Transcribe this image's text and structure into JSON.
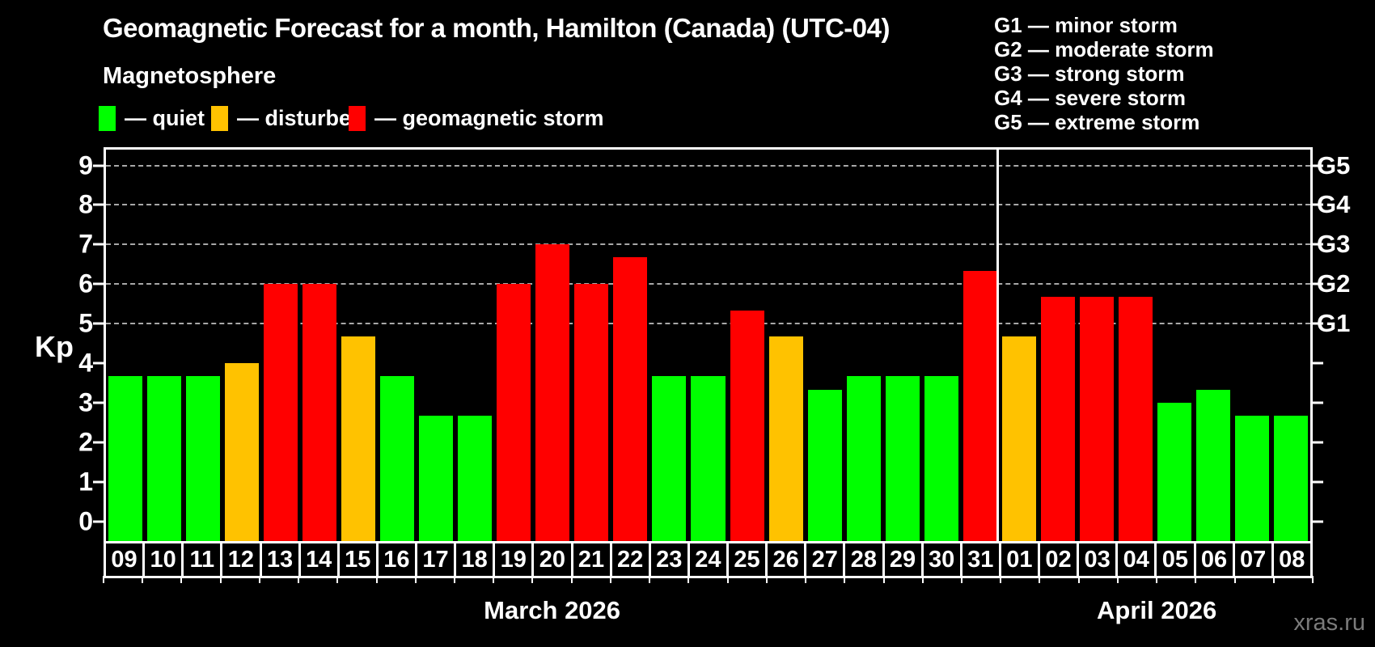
{
  "watermark": "xras.ru",
  "legend": {
    "items": [
      {
        "key": "quiet",
        "label": "— quiet",
        "color": "#00ff00"
      },
      {
        "key": "disturbed",
        "label": "— disturbed",
        "color": "#ffc200"
      },
      {
        "key": "storm",
        "label": "— geomagnetic storm",
        "color": "#ff0000"
      }
    ]
  },
  "right_legend": {
    "items": [
      "G1 — minor storm",
      "G2 — moderate storm",
      "G3 — strong storm",
      "G4 — severe storm",
      "G5 — extreme storm"
    ]
  },
  "chart_data": {
    "type": "bar",
    "title": "Geomagnetic Forecast for a month, Hamilton (Canada) (UTC-04)",
    "subtitle": "Magnetosphere",
    "colors": {
      "quiet": "#00ff00",
      "disturbed": "#ffc200",
      "storm": "#ff0000"
    },
    "y_axis": {
      "label": "Kp",
      "ticks": [
        0,
        1,
        2,
        3,
        4,
        5,
        6,
        7,
        8,
        9
      ],
      "range": [
        -0.5,
        9.4
      ]
    },
    "right_axis": {
      "levels": [
        {
          "kp": 5,
          "label": "G1"
        },
        {
          "kp": 6,
          "label": "G2"
        },
        {
          "kp": 7,
          "label": "G3"
        },
        {
          "kp": 8,
          "label": "G4"
        },
        {
          "kp": 9,
          "label": "G5"
        }
      ]
    },
    "gridlines_kp": [
      5,
      6,
      7,
      8,
      9
    ],
    "grid": true,
    "months": [
      {
        "label": "March 2026",
        "days": [
          {
            "date": "09",
            "kp": 3.67,
            "status": "quiet"
          },
          {
            "date": "10",
            "kp": 3.67,
            "status": "quiet"
          },
          {
            "date": "11",
            "kp": 3.67,
            "status": "quiet"
          },
          {
            "date": "12",
            "kp": 4.0,
            "status": "disturbed"
          },
          {
            "date": "13",
            "kp": 6.0,
            "status": "storm"
          },
          {
            "date": "14",
            "kp": 6.0,
            "status": "storm"
          },
          {
            "date": "15",
            "kp": 4.67,
            "status": "disturbed"
          },
          {
            "date": "16",
            "kp": 3.67,
            "status": "quiet"
          },
          {
            "date": "17",
            "kp": 2.67,
            "status": "quiet"
          },
          {
            "date": "18",
            "kp": 2.67,
            "status": "quiet"
          },
          {
            "date": "19",
            "kp": 6.0,
            "status": "storm"
          },
          {
            "date": "20",
            "kp": 7.0,
            "status": "storm"
          },
          {
            "date": "21",
            "kp": 6.0,
            "status": "storm"
          },
          {
            "date": "22",
            "kp": 6.67,
            "status": "storm"
          },
          {
            "date": "23",
            "kp": 3.67,
            "status": "quiet"
          },
          {
            "date": "24",
            "kp": 3.67,
            "status": "quiet"
          },
          {
            "date": "25",
            "kp": 5.33,
            "status": "storm"
          },
          {
            "date": "26",
            "kp": 4.67,
            "status": "disturbed"
          },
          {
            "date": "27",
            "kp": 3.33,
            "status": "quiet"
          },
          {
            "date": "28",
            "kp": 3.67,
            "status": "quiet"
          },
          {
            "date": "29",
            "kp": 3.67,
            "status": "quiet"
          },
          {
            "date": "30",
            "kp": 3.67,
            "status": "quiet"
          },
          {
            "date": "31",
            "kp": 6.33,
            "status": "storm"
          }
        ]
      },
      {
        "label": "April 2026",
        "days": [
          {
            "date": "01",
            "kp": 4.67,
            "status": "disturbed"
          },
          {
            "date": "02",
            "kp": 5.67,
            "status": "storm"
          },
          {
            "date": "03",
            "kp": 5.67,
            "status": "storm"
          },
          {
            "date": "04",
            "kp": 5.67,
            "status": "storm"
          },
          {
            "date": "05",
            "kp": 3.0,
            "status": "quiet"
          },
          {
            "date": "06",
            "kp": 3.33,
            "status": "quiet"
          },
          {
            "date": "07",
            "kp": 2.67,
            "status": "quiet"
          },
          {
            "date": "08",
            "kp": 2.67,
            "status": "quiet"
          }
        ]
      }
    ]
  }
}
